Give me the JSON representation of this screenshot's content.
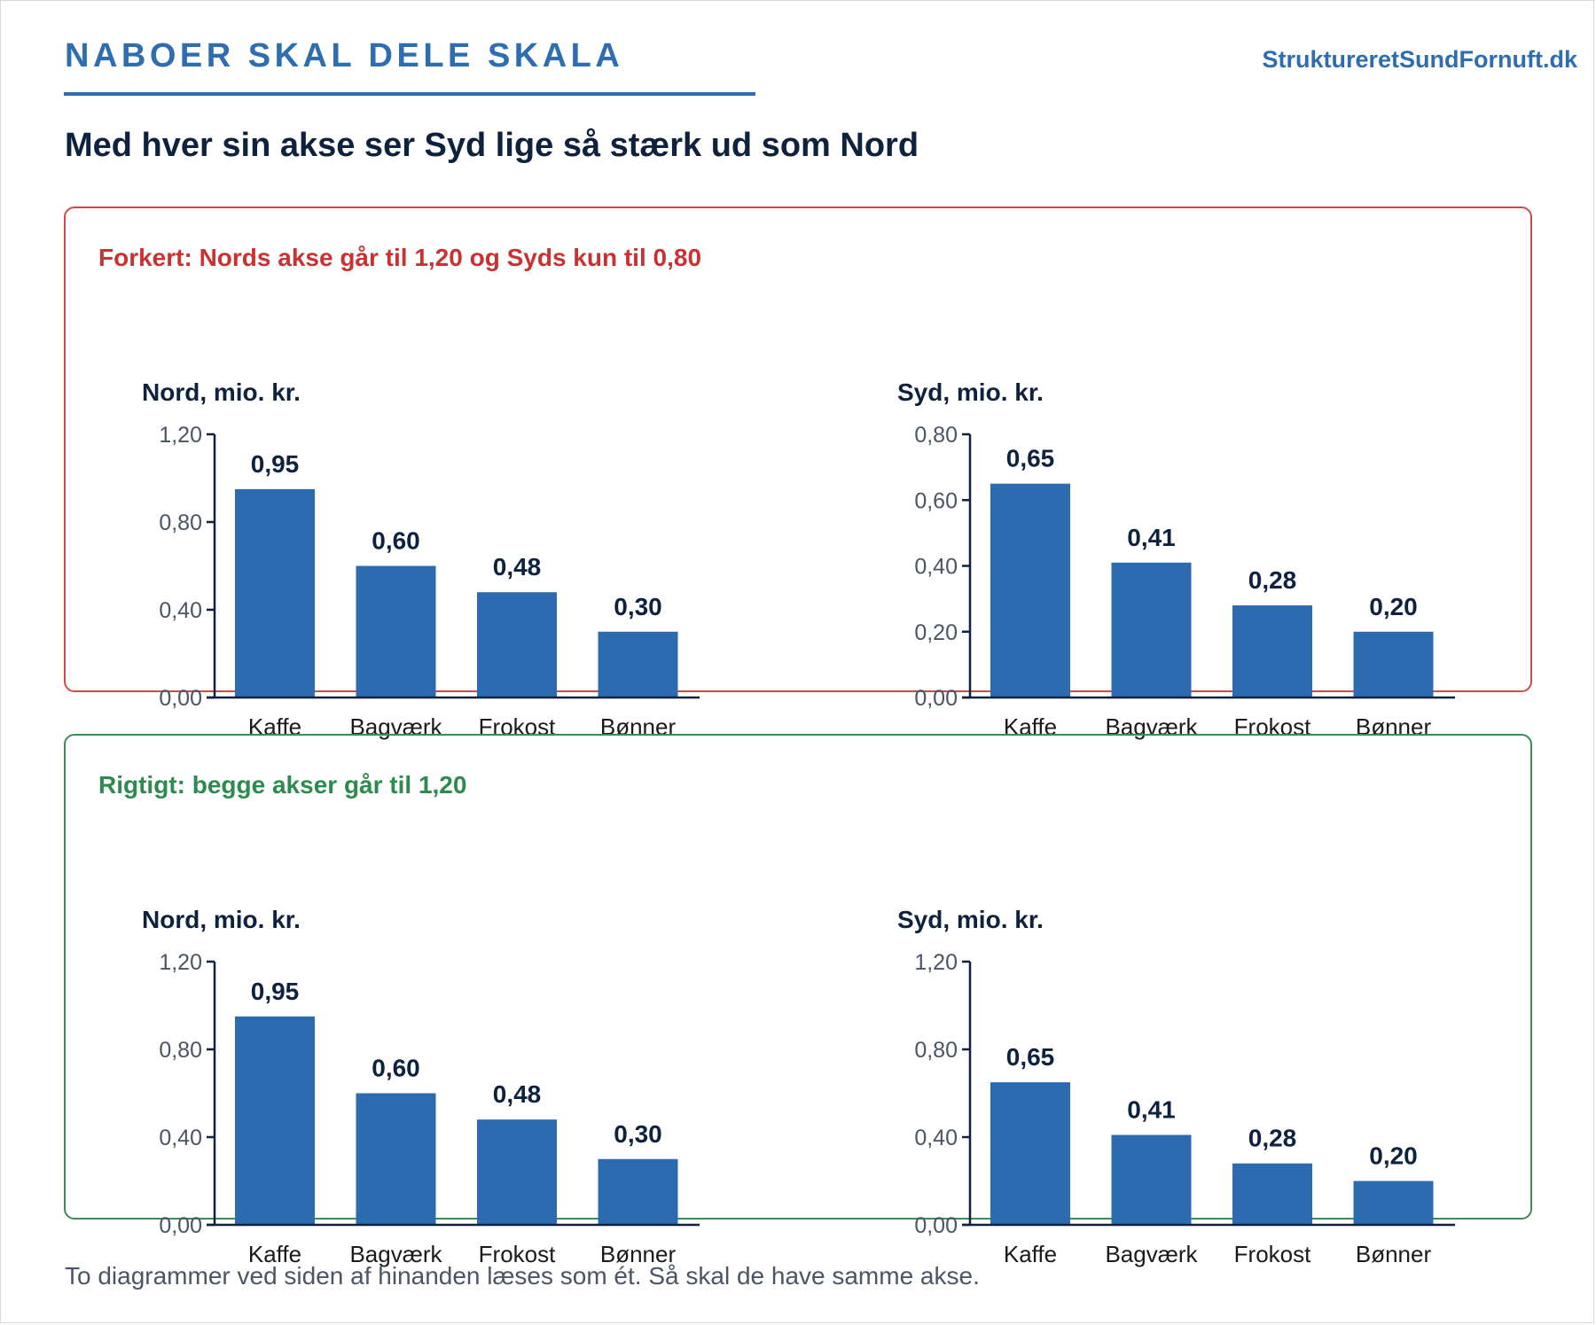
{
  "header": {
    "kicker": "NABOER SKAL DELE SKALA",
    "site": "StruktureretSundFornuft.dk",
    "headline": "Med hver sin akse ser Syd lige så stærk ud som Nord"
  },
  "panels": [
    {
      "label": "Forkert: Nords akse går til 1,20 og Syds kun til 0,80",
      "status_color": "#c93232"
    },
    {
      "label": "Rigtigt: begge akser går til 1,20",
      "status_color": "#2e8a4e"
    }
  ],
  "footer": {
    "note": "To diagrammer ved siden af hinanden læses som ét. Så skal de have samme akse."
  },
  "colors": {
    "bar": "#2d6bb0",
    "axis": "#0e2240",
    "title": "#0e2240",
    "accent": "#2e6db0"
  },
  "chart_data": [
    {
      "type": "bar",
      "title": "Nord, mio. kr.",
      "categories": [
        "Kaffe",
        "Bagværk",
        "Frokost",
        "Bønner"
      ],
      "values": [
        0.95,
        0.6,
        0.48,
        0.3
      ],
      "value_labels": [
        "0,95",
        "0,60",
        "0,48",
        "0,30"
      ],
      "ylim": [
        0,
        1.2
      ],
      "yticks": [
        0,
        0.4,
        0.8,
        1.2
      ],
      "ytick_labels": [
        "0,00",
        "0,40",
        "0,80",
        "1,20"
      ],
      "grid": false
    },
    {
      "type": "bar",
      "title": "Syd, mio. kr.",
      "categories": [
        "Kaffe",
        "Bagværk",
        "Frokost",
        "Bønner"
      ],
      "values": [
        0.65,
        0.41,
        0.28,
        0.2
      ],
      "value_labels": [
        "0,65",
        "0,41",
        "0,28",
        "0,20"
      ],
      "ylim": [
        0,
        0.8
      ],
      "yticks": [
        0,
        0.2,
        0.4,
        0.6,
        0.8
      ],
      "ytick_labels": [
        "0,00",
        "0,20",
        "0,40",
        "0,60",
        "0,80"
      ],
      "grid": false
    },
    {
      "type": "bar",
      "title": "Nord, mio. kr.",
      "categories": [
        "Kaffe",
        "Bagværk",
        "Frokost",
        "Bønner"
      ],
      "values": [
        0.95,
        0.6,
        0.48,
        0.3
      ],
      "value_labels": [
        "0,95",
        "0,60",
        "0,48",
        "0,30"
      ],
      "ylim": [
        0,
        1.2
      ],
      "yticks": [
        0,
        0.4,
        0.8,
        1.2
      ],
      "ytick_labels": [
        "0,00",
        "0,40",
        "0,80",
        "1,20"
      ],
      "grid": false
    },
    {
      "type": "bar",
      "title": "Syd, mio. kr.",
      "categories": [
        "Kaffe",
        "Bagværk",
        "Frokost",
        "Bønner"
      ],
      "values": [
        0.65,
        0.41,
        0.28,
        0.2
      ],
      "value_labels": [
        "0,65",
        "0,41",
        "0,28",
        "0,20"
      ],
      "ylim": [
        0,
        1.2
      ],
      "yticks": [
        0,
        0.4,
        0.8,
        1.2
      ],
      "ytick_labels": [
        "0,00",
        "0,40",
        "0,80",
        "1,20"
      ],
      "grid": false
    }
  ]
}
